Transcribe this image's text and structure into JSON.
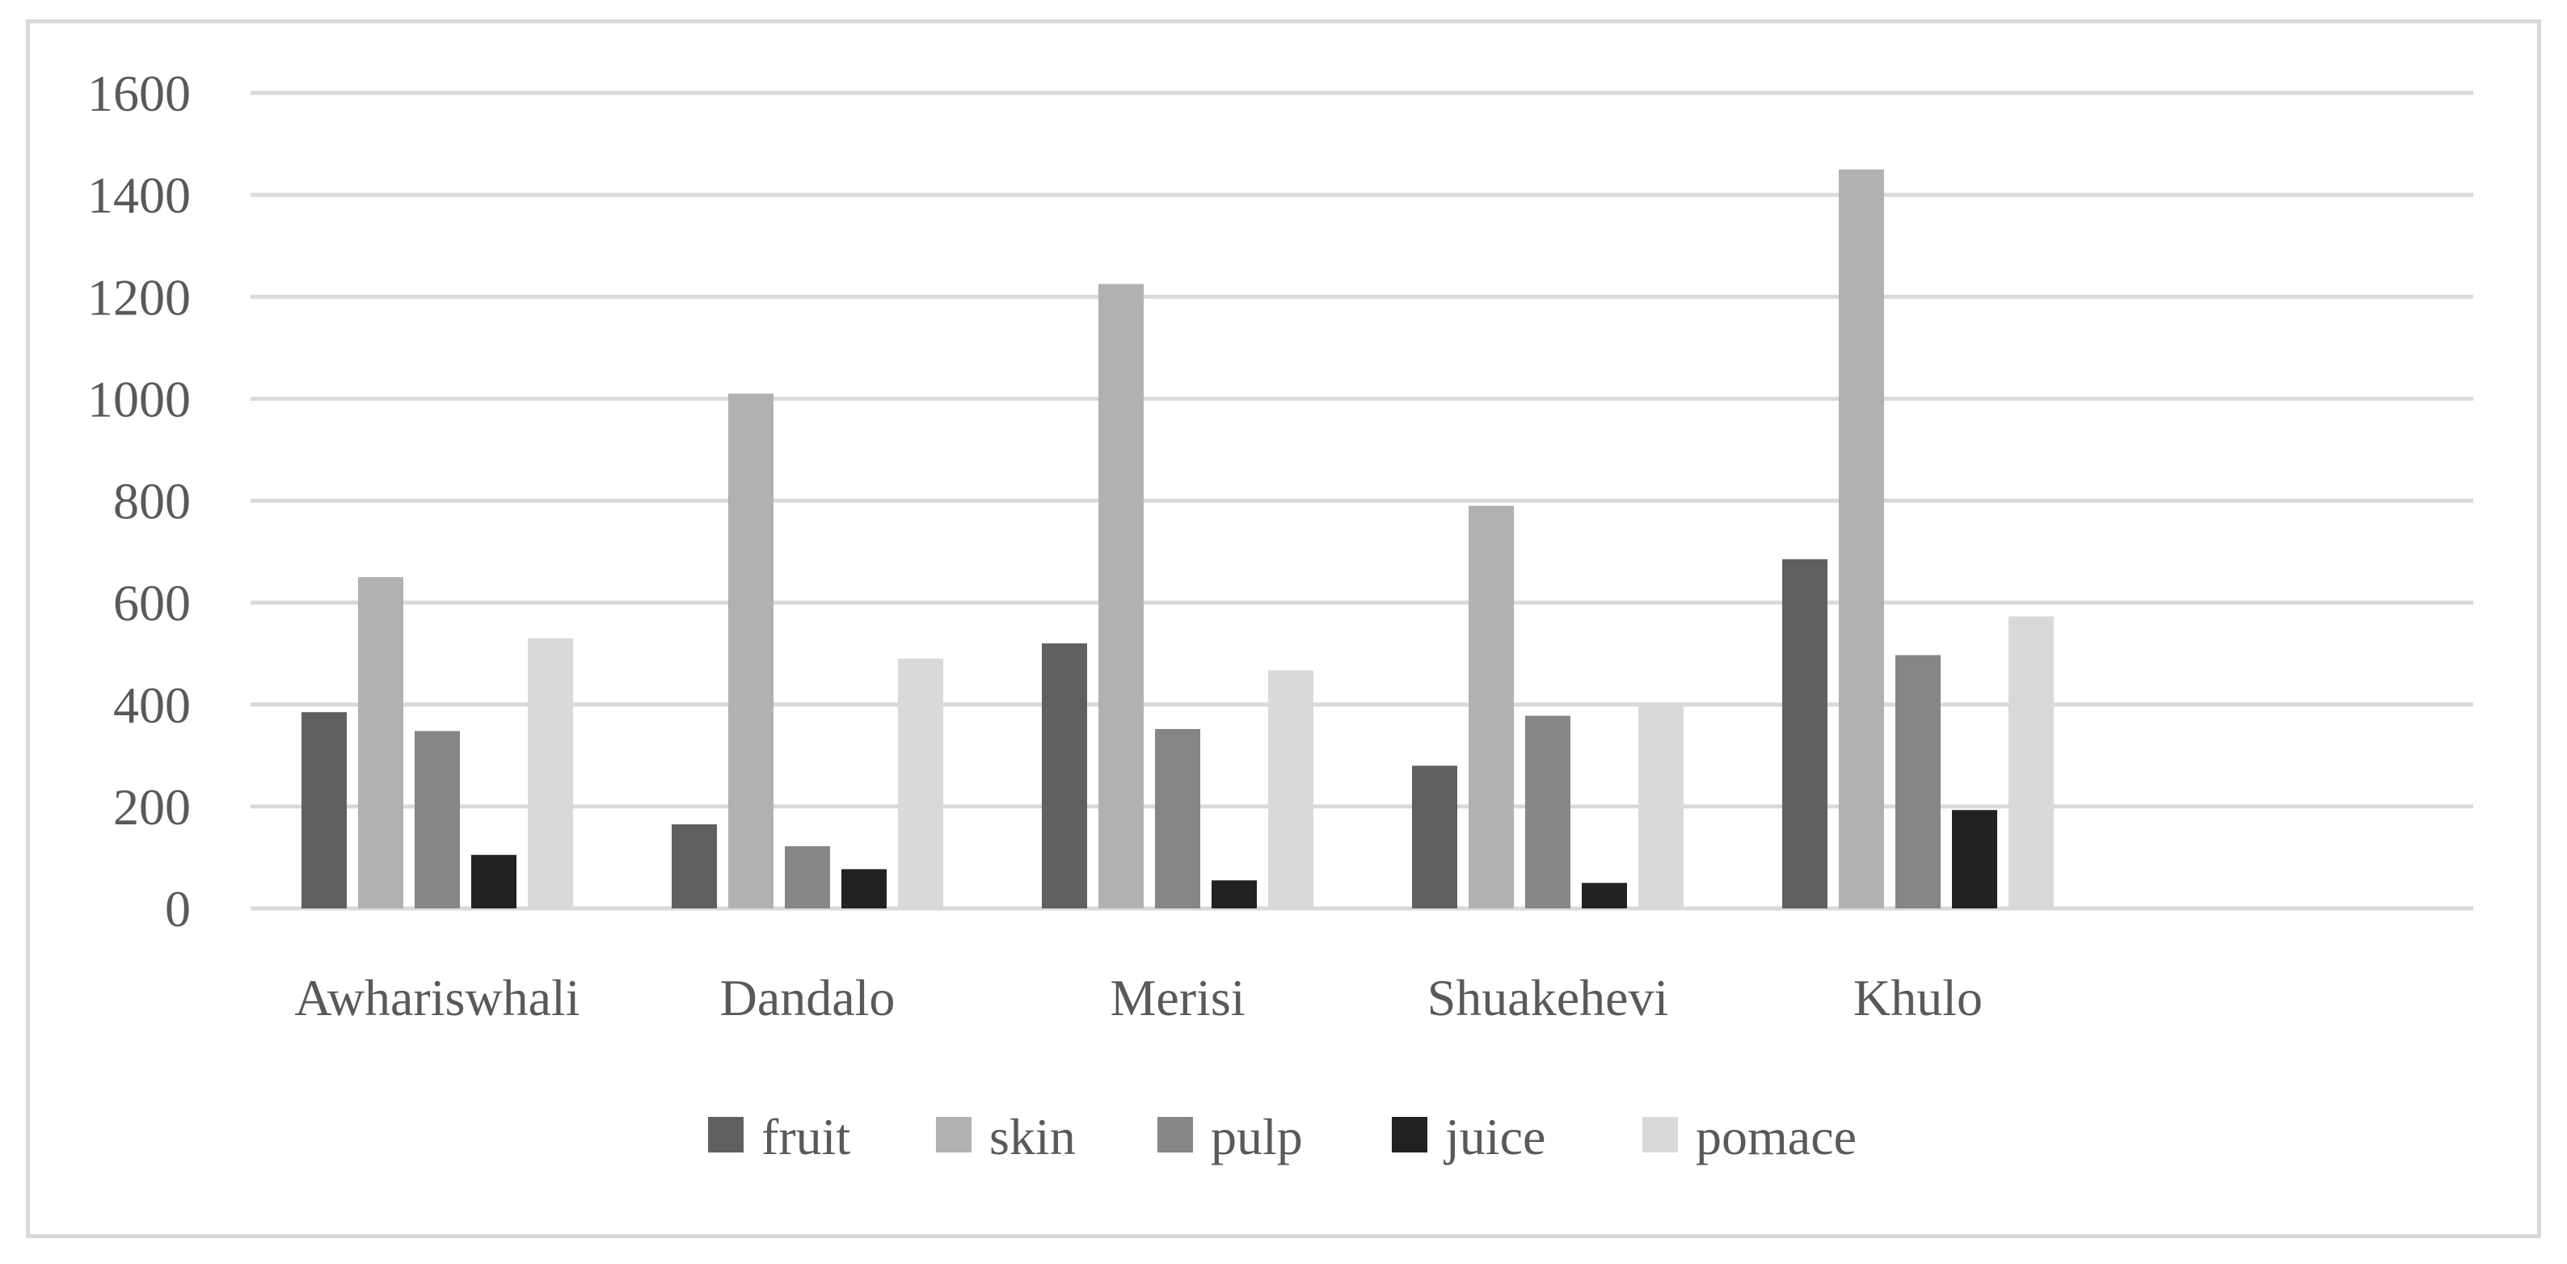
{
  "chart_data": {
    "type": "bar",
    "title": "",
    "xlabel": "",
    "ylabel": "",
    "ylim": [
      0,
      1600
    ],
    "y_ticks": [
      0,
      200,
      400,
      600,
      800,
      1000,
      1200,
      1400,
      1600
    ],
    "grid": true,
    "legend_position": "bottom",
    "categories": [
      "Awhariswhali",
      "Dandalo",
      "Merisi",
      "Shuakehevi",
      "Khulo"
    ],
    "series": [
      {
        "name": "fruit",
        "color": "#606060",
        "values": [
          385,
          165,
          520,
          280,
          685
        ]
      },
      {
        "name": "skin",
        "color": "#b1b1b1",
        "values": [
          650,
          1010,
          1225,
          790,
          1450
        ]
      },
      {
        "name": "pulp",
        "color": "#868686",
        "values": [
          348,
          122,
          352,
          378,
          497
        ]
      },
      {
        "name": "juice",
        "color": "#222222",
        "values": [
          105,
          77,
          55,
          50,
          193
        ]
      },
      {
        "name": "pomace",
        "color": "#d9d9d9",
        "values": [
          530,
          490,
          467,
          400,
          573
        ]
      }
    ],
    "colors": {
      "gridline": "#d9d9d9",
      "text": "#595959",
      "border": "#d9d9d9"
    }
  }
}
